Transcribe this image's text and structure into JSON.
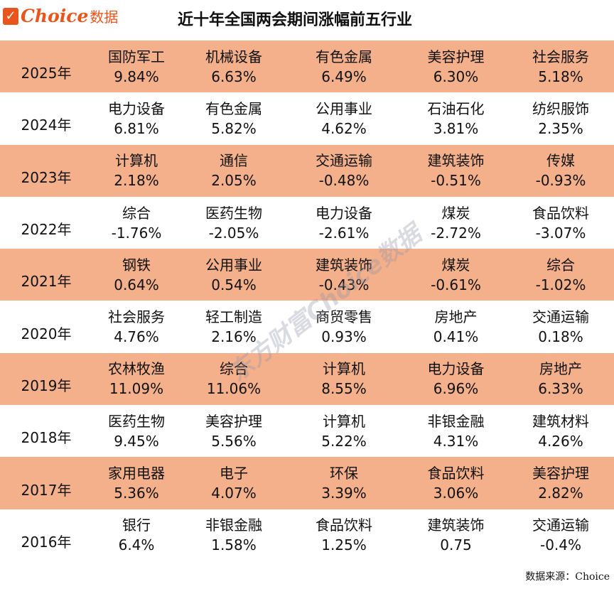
{
  "logo": {
    "brand": "Choice",
    "suffix": "数据"
  },
  "title": "近十年全国两会期间涨幅前五行业",
  "rows": [
    {
      "year": "2025年",
      "items": [
        [
          "国防军工",
          "9.84%"
        ],
        [
          "机械设备",
          "6.63%"
        ],
        [
          "有色金属",
          "6.49%"
        ],
        [
          "美容护理",
          "6.30%"
        ],
        [
          "社会服务",
          "5.18%"
        ]
      ]
    },
    {
      "year": "2024年",
      "items": [
        [
          "电力设备",
          "6.81%"
        ],
        [
          "有色金属",
          "5.82%"
        ],
        [
          "公用事业",
          "4.62%"
        ],
        [
          "石油石化",
          "3.81%"
        ],
        [
          "纺织服饰",
          "2.35%"
        ]
      ]
    },
    {
      "year": "2023年",
      "items": [
        [
          "计算机",
          "2.18%"
        ],
        [
          "通信",
          "2.05%"
        ],
        [
          "交通运输",
          "-0.48%"
        ],
        [
          "建筑装饰",
          "-0.51%"
        ],
        [
          "传媒",
          "-0.93%"
        ]
      ]
    },
    {
      "year": "2022年",
      "items": [
        [
          "综合",
          "-1.76%"
        ],
        [
          "医药生物",
          "-2.05%"
        ],
        [
          "电力设备",
          "-2.61%"
        ],
        [
          "煤炭",
          "-2.72%"
        ],
        [
          "食品饮料",
          "-3.07%"
        ]
      ]
    },
    {
      "year": "2021年",
      "items": [
        [
          "钢铁",
          "0.64%"
        ],
        [
          "公用事业",
          "0.54%"
        ],
        [
          "建筑装饰",
          "-0.43%"
        ],
        [
          "煤炭",
          "-0.61%"
        ],
        [
          "综合",
          "-1.02%"
        ]
      ]
    },
    {
      "year": "2020年",
      "items": [
        [
          "社会服务",
          "4.76%"
        ],
        [
          "轻工制造",
          "2.16%"
        ],
        [
          "商贸零售",
          "0.93%"
        ],
        [
          "房地产",
          "0.41%"
        ],
        [
          "交通运输",
          "0.18%"
        ]
      ]
    },
    {
      "year": "2019年",
      "items": [
        [
          "农林牧渔",
          "11.09%"
        ],
        [
          "综合",
          "11.06%"
        ],
        [
          "计算机",
          "8.55%"
        ],
        [
          "电力设备",
          "6.96%"
        ],
        [
          "房地产",
          "6.33%"
        ]
      ]
    },
    {
      "year": "2018年",
      "items": [
        [
          "医药生物",
          "9.45%"
        ],
        [
          "美容护理",
          "5.56%"
        ],
        [
          "计算机",
          "5.22%"
        ],
        [
          "非银金融",
          "4.31%"
        ],
        [
          "建筑材料",
          "4.26%"
        ]
      ]
    },
    {
      "year": "2017年",
      "items": [
        [
          "家用电器",
          "5.36%"
        ],
        [
          "电子",
          "4.07%"
        ],
        [
          "环保",
          "3.39%"
        ],
        [
          "食品饮料",
          "3.06%"
        ],
        [
          "美容护理",
          "2.82%"
        ]
      ]
    },
    {
      "year": "2016年",
      "items": [
        [
          "银行",
          "6.4%"
        ],
        [
          "非银金融",
          "1.58%"
        ],
        [
          "食品饮料",
          "1.25%"
        ],
        [
          "建筑装饰",
          "0.75"
        ],
        [
          "交通运输",
          "-0.4%"
        ]
      ]
    }
  ],
  "watermark": "东方财富Choice数据",
  "source": "数据来源：Choice",
  "colors": {
    "row_shade": "#F3B08A",
    "brand": "#E8561E"
  }
}
